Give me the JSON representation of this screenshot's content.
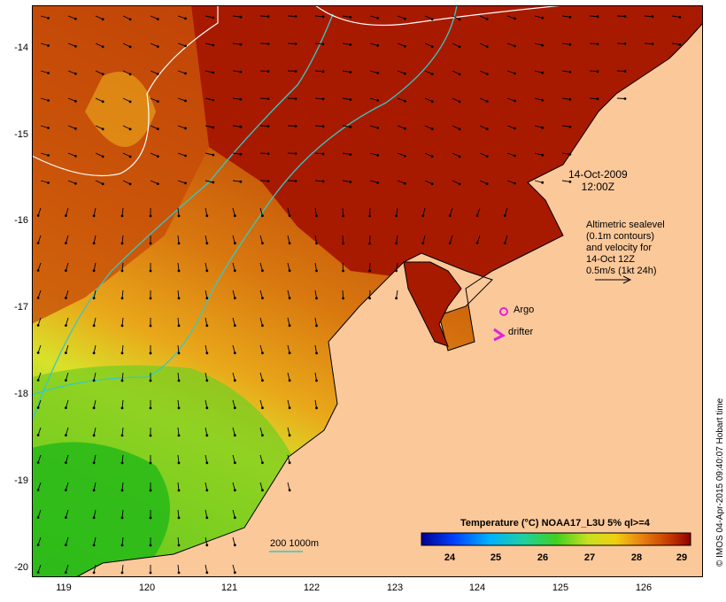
{
  "map": {
    "x_ticks": [
      "119",
      "120",
      "121",
      "122",
      "123",
      "124",
      "125",
      "126"
    ],
    "y_ticks": [
      "-14",
      "-15",
      "-16",
      "-17",
      "-18",
      "-19",
      "-20"
    ],
    "timestamp_line1": "14-Oct-2009",
    "timestamp_line2": "12:00Z",
    "sealevel_note": [
      "Altimetric sealevel",
      "(0.1m contours)",
      "and velocity for",
      "14-Oct 12Z",
      "0.5m/s (1kt 24h)"
    ],
    "argo_label": "Argo",
    "drifter_label": "drifter",
    "isobath_label": "200  1000m",
    "colorbar_title": "Temperature (°C) NOAA17_L3U 5% ql>=4",
    "colorbar_ticks": [
      "24",
      "25",
      "26",
      "27",
      "28",
      "29"
    ],
    "credit": "© IMOS 04-Apr-2015 09:40:07 Hobart time",
    "colors": {
      "land": "#fbc89a",
      "sst_warm": "#a81a00",
      "sst_mid": "#d86d10",
      "sst_cool": "#c9e22a",
      "sst_cold": "#2fc020",
      "isobath_200": "#ffffff",
      "isobath_1000": "#35c9c4",
      "argo_marker": "#e020e0"
    }
  }
}
